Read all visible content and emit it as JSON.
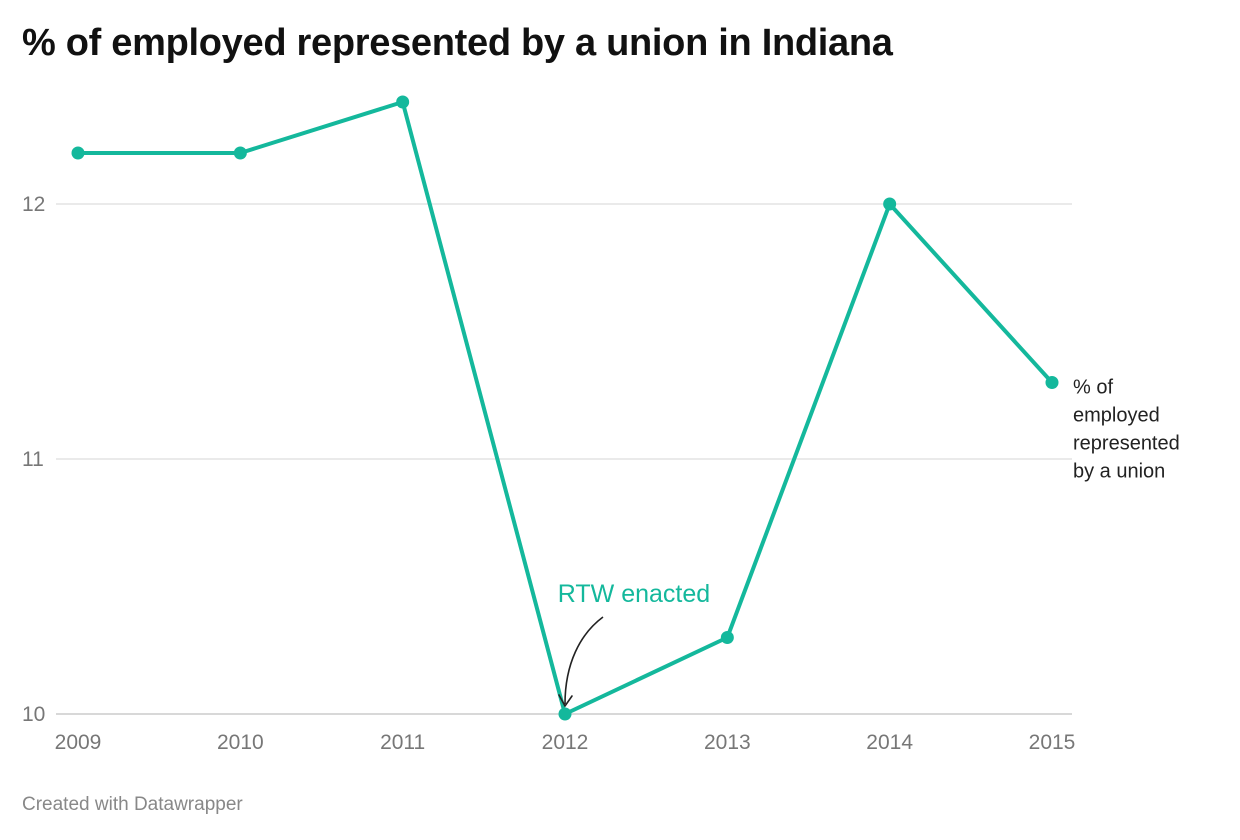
{
  "page": {
    "title": "% of employed represented by a union in Indiana",
    "footer": "Created with Datawrapper"
  },
  "colors": {
    "series": "#14b89c",
    "grid": "#dddddd",
    "axis_text": "#777777",
    "annotation_arrow": "#222222"
  },
  "chart_data": {
    "type": "line",
    "title": "% of employed represented by a union in Indiana",
    "x": [
      "2009",
      "2010",
      "2011",
      "2012",
      "2013",
      "2014",
      "2015"
    ],
    "series": [
      {
        "name": "% of employed represented by a union",
        "name_lines": [
          "% of",
          "employed",
          "represented",
          "by a union"
        ],
        "values": [
          12.2,
          12.2,
          12.4,
          10.0,
          10.3,
          12.0,
          11.3
        ]
      }
    ],
    "yticks": [
      "10",
      "11",
      "12"
    ],
    "ylim": [
      10,
      12.4
    ],
    "grid": true,
    "legend": "direct-label-right",
    "annotations": [
      {
        "text": "RTW enacted",
        "x": "2012",
        "y": 10.0
      }
    ]
  }
}
